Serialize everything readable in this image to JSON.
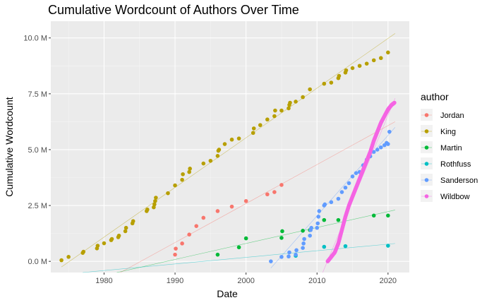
{
  "chart_data": {
    "type": "scatter",
    "title": "Cumulative Wordcount of Authors Over Time",
    "xlabel": "Date",
    "ylabel": "Cumulative Wordcount",
    "xlim": [
      1972.5,
      2023
    ],
    "ylim": [
      -500000,
      10750000
    ],
    "x_ticks": [
      1980,
      1990,
      2000,
      2010,
      2020
    ],
    "x_tick_labels": [
      "1980",
      "1990",
      "2000",
      "2010",
      "2020"
    ],
    "y_ticks": [
      0,
      2500000,
      5000000,
      7500000,
      10000000
    ],
    "y_tick_labels": [
      "0.0 M",
      "2.5 M",
      "5.0 M",
      "7.5 M",
      "10.0 M"
    ],
    "grid": true,
    "legend_title": "author",
    "legend_position": "right",
    "series": [
      {
        "name": "Jordan",
        "color": "#F8766D",
        "points": [
          [
            1990.0,
            300000
          ],
          [
            1990.1,
            570000
          ],
          [
            1991.0,
            800000
          ],
          [
            1992.0,
            1200000
          ],
          [
            1993.0,
            1580000
          ],
          [
            1994.0,
            1950000
          ],
          [
            1996.0,
            2250000
          ],
          [
            1998.0,
            2450000
          ],
          [
            2000.0,
            2700000
          ],
          [
            2003.0,
            3000000
          ],
          [
            2004.0,
            3100000
          ],
          [
            2005.0,
            3420000
          ]
        ],
        "trend": [
          [
            1982.3,
            -500000
          ],
          [
            2021.0,
            6250000
          ]
        ]
      },
      {
        "name": "King",
        "color": "#B79F00",
        "points": [
          [
            1974.0,
            50000
          ],
          [
            1975.0,
            200000
          ],
          [
            1977.0,
            380000
          ],
          [
            1977.1,
            430000
          ],
          [
            1979.0,
            580000
          ],
          [
            1979.1,
            700000
          ],
          [
            1980.0,
            810000
          ],
          [
            1981.0,
            950000
          ],
          [
            1981.1,
            1000000
          ],
          [
            1982.0,
            1080000
          ],
          [
            1982.1,
            1150000
          ],
          [
            1983.0,
            1350000
          ],
          [
            1983.1,
            1500000
          ],
          [
            1984.0,
            1700000
          ],
          [
            1984.1,
            1800000
          ],
          [
            1986.0,
            2250000
          ],
          [
            1986.1,
            2320000
          ],
          [
            1987.0,
            2420000
          ],
          [
            1987.1,
            2550000
          ],
          [
            1987.2,
            2700000
          ],
          [
            1987.3,
            2850000
          ],
          [
            1989.0,
            3050000
          ],
          [
            1990.0,
            3400000
          ],
          [
            1991.0,
            3650000
          ],
          [
            1991.1,
            3900000
          ],
          [
            1992.0,
            4000000
          ],
          [
            1992.1,
            4150000
          ],
          [
            1994.0,
            4380000
          ],
          [
            1995.0,
            4500000
          ],
          [
            1996.0,
            4720000
          ],
          [
            1996.1,
            4950000
          ],
          [
            1996.2,
            5000000
          ],
          [
            1997.0,
            5250000
          ],
          [
            1998.0,
            5450000
          ],
          [
            1999.0,
            5500000
          ],
          [
            2001.0,
            5750000
          ],
          [
            2001.1,
            5950000
          ],
          [
            2002.0,
            6100000
          ],
          [
            2003.0,
            6350000
          ],
          [
            2004.0,
            6500000
          ],
          [
            2004.1,
            6750000
          ],
          [
            2005.0,
            6750000
          ],
          [
            2006.0,
            6850000
          ],
          [
            2006.1,
            7000000
          ],
          [
            2006.2,
            7100000
          ],
          [
            2007.0,
            7150000
          ],
          [
            2008.0,
            7350000
          ],
          [
            2009.0,
            7700000
          ],
          [
            2011.0,
            7950000
          ],
          [
            2012.0,
            8000000
          ],
          [
            2013.0,
            8200000
          ],
          [
            2013.1,
            8300000
          ],
          [
            2014.0,
            8450000
          ],
          [
            2014.1,
            8550000
          ],
          [
            2015.0,
            8650000
          ],
          [
            2016.0,
            8750000
          ],
          [
            2017.0,
            8850000
          ],
          [
            2018.0,
            9000000
          ],
          [
            2019.0,
            9100000
          ],
          [
            2020.0,
            9350000
          ]
        ],
        "trend": [
          [
            1974.0,
            -250000
          ],
          [
            2021.0,
            10200000
          ]
        ]
      },
      {
        "name": "Martin",
        "color": "#00BA38",
        "points": [
          [
            1996.0,
            300000
          ],
          [
            1999.0,
            630000
          ],
          [
            2000.0,
            1030000
          ],
          [
            2005.0,
            1050000
          ],
          [
            2005.1,
            1350000
          ],
          [
            2008.0,
            1370000
          ],
          [
            2009.0,
            1400000
          ],
          [
            2011.0,
            1850000
          ],
          [
            2013.0,
            1850000
          ],
          [
            2018.0,
            2050000
          ],
          [
            2020.0,
            2050000
          ]
        ],
        "trend": [
          [
            1981.8,
            -500000
          ],
          [
            2021.0,
            2300000
          ]
        ]
      },
      {
        "name": "Rothfuss",
        "color": "#00BFC4",
        "points": [
          [
            2007.0,
            250000
          ],
          [
            2011.0,
            650000
          ],
          [
            2014.0,
            680000
          ],
          [
            2020.0,
            700000
          ]
        ],
        "trend": [
          [
            1977.0,
            -500000
          ],
          [
            2021.0,
            800000
          ]
        ]
      },
      {
        "name": "Sanderson",
        "color": "#619CFF",
        "points": [
          [
            2003.5,
            0
          ],
          [
            2005.0,
            200000
          ],
          [
            2006.0,
            220000
          ],
          [
            2006.1,
            400000
          ],
          [
            2007.0,
            300000
          ],
          [
            2007.1,
            500000
          ],
          [
            2008.0,
            600000
          ],
          [
            2008.1,
            800000
          ],
          [
            2008.2,
            1000000
          ],
          [
            2009.0,
            1150000
          ],
          [
            2009.1,
            1400000
          ],
          [
            2009.2,
            1500000
          ],
          [
            2010.0,
            1500000
          ],
          [
            2010.1,
            1700000
          ],
          [
            2010.2,
            2000000
          ],
          [
            2010.3,
            2250000
          ],
          [
            2011.0,
            2500000
          ],
          [
            2011.1,
            2550000
          ],
          [
            2012.0,
            2650000
          ],
          [
            2013.0,
            2800000
          ],
          [
            2013.5,
            3100000
          ],
          [
            2014.0,
            3300000
          ],
          [
            2014.5,
            3500000
          ],
          [
            2015.0,
            3800000
          ],
          [
            2015.5,
            3950000
          ],
          [
            2016.0,
            4000000
          ],
          [
            2016.5,
            4300000
          ],
          [
            2017.0,
            4550000
          ],
          [
            2017.5,
            4700000
          ],
          [
            2018.0,
            4900000
          ],
          [
            2018.5,
            5000000
          ],
          [
            2019.0,
            5100000
          ],
          [
            2019.5,
            5200000
          ],
          [
            2019.8,
            5300000
          ],
          [
            2020.0,
            5250000
          ],
          [
            2020.2,
            5800000
          ]
        ],
        "trend": [
          [
            2003.5,
            -300000
          ],
          [
            2021.0,
            6000000
          ]
        ]
      },
      {
        "name": "Wildbow",
        "color": "#F564E3",
        "points": [
          [
            2011.5,
            0
          ],
          [
            2012.0,
            200000
          ],
          [
            2012.5,
            400000
          ],
          [
            2013.0,
            800000
          ],
          [
            2013.5,
            1400000
          ],
          [
            2014.0,
            2000000
          ],
          [
            2014.5,
            2500000
          ],
          [
            2015.0,
            2900000
          ],
          [
            2015.5,
            3300000
          ],
          [
            2016.0,
            3700000
          ],
          [
            2016.5,
            4100000
          ],
          [
            2017.0,
            4500000
          ],
          [
            2017.5,
            4900000
          ],
          [
            2018.0,
            5400000
          ],
          [
            2018.5,
            5800000
          ],
          [
            2019.0,
            6200000
          ],
          [
            2019.5,
            6500000
          ],
          [
            2020.0,
            6800000
          ],
          [
            2020.5,
            7000000
          ],
          [
            2020.9,
            7100000
          ]
        ],
        "trend": [
          [
            2010.8,
            -500000
          ],
          [
            2021.0,
            7300000
          ]
        ]
      }
    ]
  }
}
